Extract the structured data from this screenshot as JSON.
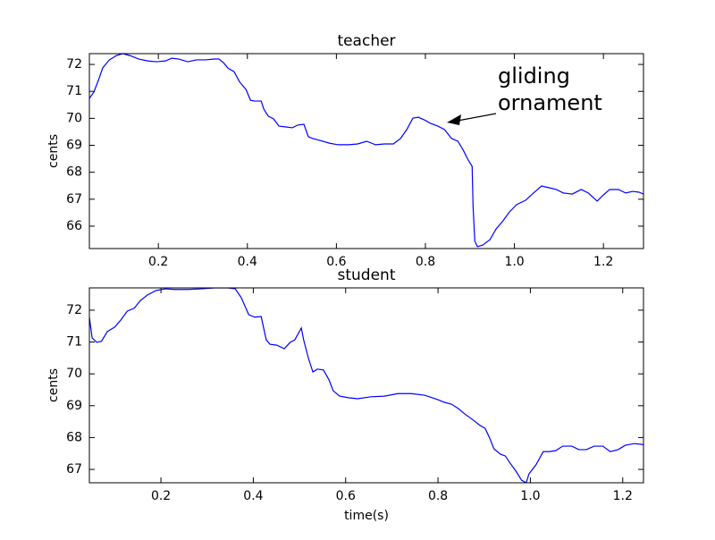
{
  "chart_data": [
    {
      "type": "line",
      "title": "teacher",
      "ylabel": "cents",
      "color": "#0000ff",
      "annotation": "gliding\nornament",
      "xlim": [
        0.045,
        1.29
      ],
      "ylim": [
        65.17,
        72.4
      ],
      "xticks": [
        0.2,
        0.4,
        0.6,
        0.8,
        {
          "value": 1,
          "label": "1.0"
        },
        1.2
      ],
      "yticks": [
        66,
        67,
        68,
        69,
        70,
        71,
        72
      ],
      "x": [
        0.045,
        0.055,
        0.065,
        0.075,
        0.09,
        0.106,
        0.12,
        0.136,
        0.156,
        0.176,
        0.196,
        0.216,
        0.23,
        0.246,
        0.266,
        0.286,
        0.306,
        0.326,
        0.336,
        0.346,
        0.356,
        0.37,
        0.383,
        0.397,
        0.407,
        0.417,
        0.431,
        0.437,
        0.447,
        0.459,
        0.471,
        0.487,
        0.501,
        0.513,
        0.527,
        0.537,
        0.547,
        0.563,
        0.584,
        0.604,
        0.628,
        0.648,
        0.668,
        0.688,
        0.708,
        0.728,
        0.744,
        0.758,
        0.772,
        0.784,
        0.798,
        0.812,
        0.828,
        0.843,
        0.859,
        0.873,
        0.885,
        0.895,
        0.905,
        0.907,
        0.911,
        0.917,
        0.929,
        0.945,
        0.959,
        0.973,
        0.989,
        1.005,
        1.025,
        1.045,
        1.061,
        1.077,
        1.094,
        1.11,
        1.13,
        1.15,
        1.166,
        1.186,
        1.2,
        1.214,
        1.234,
        1.25,
        1.266,
        1.28,
        1.29
      ],
      "values": [
        70.74,
        70.97,
        71.4,
        71.87,
        72.17,
        72.33,
        72.4,
        72.33,
        72.2,
        72.13,
        72.1,
        72.13,
        72.23,
        72.2,
        72.1,
        72.17,
        72.17,
        72.2,
        72.2,
        72.07,
        71.87,
        71.73,
        71.34,
        71.07,
        70.67,
        70.64,
        70.64,
        70.34,
        70.08,
        69.98,
        69.71,
        69.68,
        69.65,
        69.75,
        69.78,
        69.32,
        69.25,
        69.18,
        69.08,
        69.02,
        69.02,
        69.05,
        69.15,
        69.02,
        69.05,
        69.05,
        69.25,
        69.58,
        70.01,
        70.04,
        69.94,
        69.81,
        69.71,
        69.58,
        69.25,
        69.15,
        68.82,
        68.49,
        68.22,
        66.76,
        65.44,
        65.24,
        65.3,
        65.5,
        65.9,
        66.17,
        66.53,
        66.8,
        66.96,
        67.26,
        67.49,
        67.43,
        67.36,
        67.23,
        67.19,
        67.36,
        67.23,
        66.93,
        67.16,
        67.36,
        67.36,
        67.23,
        67.29,
        67.26,
        67.19
      ]
    },
    {
      "type": "line",
      "title": "student",
      "ylabel": "cents",
      "xlabel": "time(s)",
      "color": "#0000ff",
      "xlim": [
        0.045,
        1.245
      ],
      "ylim": [
        66.58,
        72.7
      ],
      "xticks": [
        0.2,
        0.4,
        0.6,
        0.8,
        {
          "value": 1,
          "label": "1.0"
        },
        1.2
      ],
      "yticks": [
        67,
        68,
        69,
        70,
        71,
        72
      ],
      "x": [
        0.045,
        0.051,
        0.061,
        0.071,
        0.084,
        0.1,
        0.113,
        0.127,
        0.142,
        0.156,
        0.171,
        0.19,
        0.21,
        0.229,
        0.258,
        0.287,
        0.316,
        0.345,
        0.361,
        0.374,
        0.39,
        0.403,
        0.417,
        0.428,
        0.436,
        0.451,
        0.467,
        0.48,
        0.49,
        0.504,
        0.509,
        0.519,
        0.529,
        0.539,
        0.552,
        0.564,
        0.573,
        0.587,
        0.606,
        0.626,
        0.655,
        0.684,
        0.713,
        0.742,
        0.771,
        0.8,
        0.813,
        0.829,
        0.844,
        0.858,
        0.877,
        0.891,
        0.902,
        0.912,
        0.921,
        0.935,
        0.946,
        0.956,
        0.97,
        0.981,
        0.991,
        0.997,
        1.012,
        1.028,
        1.041,
        1.055,
        1.07,
        1.09,
        1.105,
        1.121,
        1.138,
        1.157,
        1.173,
        1.19,
        1.206,
        1.225,
        1.245
      ],
      "values": [
        71.78,
        71.13,
        70.99,
        71.02,
        71.33,
        71.47,
        71.69,
        71.97,
        72.06,
        72.31,
        72.48,
        72.62,
        72.67,
        72.65,
        72.65,
        72.67,
        72.7,
        72.7,
        72.67,
        72.39,
        71.86,
        71.78,
        71.8,
        71.07,
        70.93,
        70.9,
        70.79,
        70.99,
        71.07,
        71.44,
        71.07,
        70.51,
        70.06,
        70.15,
        70.12,
        69.81,
        69.47,
        69.3,
        69.25,
        69.22,
        69.28,
        69.3,
        69.38,
        69.38,
        69.33,
        69.19,
        69.11,
        69.05,
        68.91,
        68.74,
        68.54,
        68.38,
        68.29,
        67.98,
        67.65,
        67.48,
        67.42,
        67.2,
        66.92,
        66.66,
        66.58,
        66.86,
        67.14,
        67.56,
        67.56,
        67.59,
        67.73,
        67.73,
        67.62,
        67.62,
        67.73,
        67.73,
        67.56,
        67.62,
        67.76,
        67.81,
        67.78
      ]
    }
  ]
}
